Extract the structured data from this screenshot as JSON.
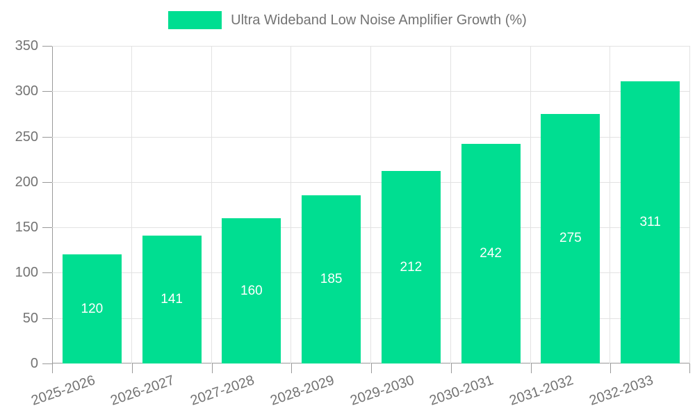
{
  "legend": {
    "label": "Ultra Wideband Low Noise Amplifier Growth (%)"
  },
  "chart_data": {
    "type": "bar",
    "title": "Ultra Wideband Low Noise Amplifier Growth (%)",
    "categories": [
      "2025-2026",
      "2026-2027",
      "2027-2028",
      "2028-2029",
      "2029-2030",
      "2030-2031",
      "2031-2032",
      "2032-2033"
    ],
    "values": [
      120,
      141,
      160,
      185,
      212,
      242,
      275,
      311
    ],
    "xlabel": "",
    "ylabel": "",
    "ylim": [
      0,
      350
    ],
    "yticks": [
      0,
      50,
      100,
      150,
      200,
      250,
      300,
      350
    ],
    "grid": true,
    "legend_position": "top",
    "value_label_position": "inside-center"
  },
  "colors": {
    "bar": "#00DE91",
    "grid": "#E2E2E2",
    "axis": "#999999",
    "text": "#737373",
    "value_label": "#FFFFFF",
    "background": "#FFFFFF"
  }
}
